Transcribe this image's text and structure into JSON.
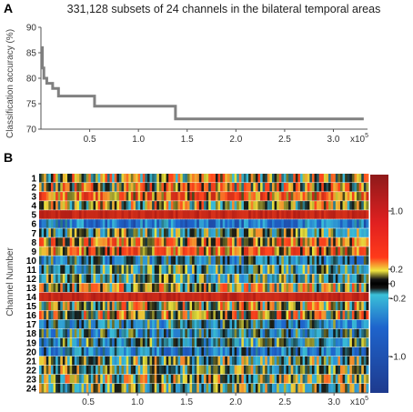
{
  "figure": {
    "panel_a_letter": "A",
    "panel_b_letter": "B"
  },
  "chart_data": [
    {
      "type": "line",
      "panel": "A",
      "title": "331,128 subsets of 24 channels in the bilateral temporal areas",
      "xlabel": "",
      "ylabel": "Classification accuracy (%)",
      "x_tick_labels": [
        "0.5",
        "1.0",
        "1.5",
        "2.0",
        "2.5",
        "3.0"
      ],
      "x_ticks": [
        50000,
        100000,
        150000,
        200000,
        250000,
        300000
      ],
      "x_multiplier_base": "x10",
      "x_multiplier_exp": "5",
      "y_tick_labels": [
        "70",
        "75",
        "80",
        "85",
        "90"
      ],
      "y_ticks": [
        70,
        75,
        80,
        85,
        90
      ],
      "xlim": [
        0,
        335000
      ],
      "ylim": [
        70,
        90
      ],
      "series": [
        {
          "color": "#808080",
          "step": true,
          "x": [
            0,
            1500,
            3000,
            6000,
            12000,
            18000,
            55000,
            138000,
            331128
          ],
          "y": [
            86,
            82,
            80,
            79,
            78,
            76.5,
            74.5,
            72,
            72
          ]
        }
      ],
      "grid": false
    },
    {
      "type": "heatmap",
      "panel": "B",
      "ylabel": "Channel Number",
      "rows": [
        "1",
        "2",
        "3",
        "4",
        "5",
        "6",
        "7",
        "8",
        "9",
        "10",
        "11",
        "12",
        "13",
        "14",
        "15",
        "16",
        "17",
        "18",
        "19",
        "20",
        "21",
        "22",
        "23",
        "24"
      ],
      "x_tick_labels": [
        "0.5",
        "1.0",
        "1.5",
        "2.0",
        "2.5",
        "3.0"
      ],
      "x_ticks": [
        50000,
        100000,
        150000,
        200000,
        250000,
        300000
      ],
      "x_multiplier_base": "x10",
      "x_multiplier_exp": "5",
      "xlim": [
        0,
        335000
      ],
      "row_mean_weights": [
        0.2,
        0.3,
        0.6,
        0.2,
        1.2,
        -0.7,
        0.0,
        0.4,
        0.5,
        -0.3,
        -0.1,
        -0.1,
        0.2,
        1.2,
        0.2,
        0.3,
        -0.3,
        -0.3,
        -0.2,
        -0.5,
        0.0,
        0.0,
        0.1,
        0.0
      ],
      "colorbar": {
        "tick_labels": [
          "1.0",
          "0.2",
          "0",
          "-0.2",
          "-1.0"
        ],
        "ticks": [
          1.0,
          0.2,
          0.0,
          -0.2,
          -1.0
        ],
        "range": [
          -1.5,
          1.5
        ],
        "colors": [
          "#1f3a93",
          "#1a5fd0",
          "#28b4d8",
          "#000000",
          "#f2f22a",
          "#ff2020",
          "#a51818"
        ]
      }
    }
  ]
}
